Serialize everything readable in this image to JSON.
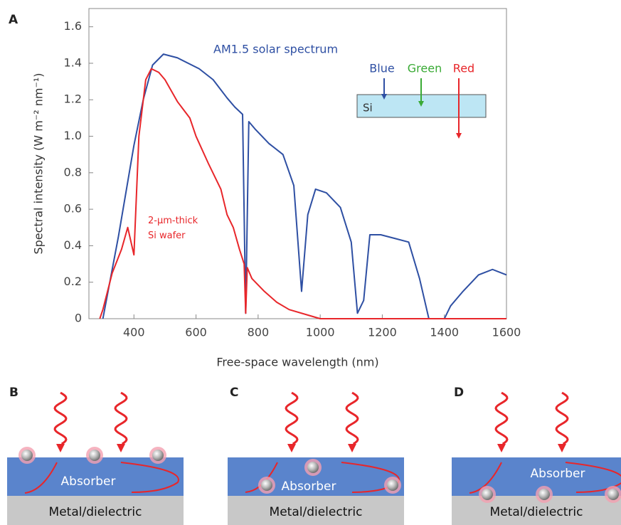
{
  "panel_label": "A",
  "chart_data": {
    "type": "line",
    "x_label": "Free-space wavelength (nm)",
    "y_label": "Spectral intensity (W m⁻² nm⁻¹)",
    "xlim": [
      255,
      1600
    ],
    "ylim": [
      0,
      1.7
    ],
    "xticks": [
      400,
      600,
      800,
      1000,
      1200,
      1400,
      1600
    ],
    "yticks": [
      0,
      0.2,
      0.4,
      0.6,
      0.8,
      {
        "value": 1,
        "label": "1.0"
      },
      1.2,
      1.4,
      1.6
    ],
    "series": [
      {
        "name": "AM1.5 solar spectrum",
        "color": "#2e4fa3",
        "x": [
          300,
          350,
          400,
          430,
          460,
          495,
          540,
          610,
          655,
          700,
          725,
          750,
          760,
          770,
          790,
          835,
          880,
          915,
          940,
          960,
          985,
          1020,
          1065,
          1100,
          1120,
          1140,
          1160,
          1195,
          1240,
          1285,
          1320,
          1350,
          1400,
          1420,
          1460,
          1510,
          1555,
          1600
        ],
        "values": [
          0,
          0.45,
          0.95,
          1.2,
          1.39,
          1.45,
          1.43,
          1.37,
          1.31,
          1.21,
          1.16,
          1.12,
          0.03,
          1.08,
          1.04,
          0.96,
          0.9,
          0.73,
          0.15,
          0.57,
          0.71,
          0.69,
          0.61,
          0.42,
          0.03,
          0.1,
          0.46,
          0.46,
          0.44,
          0.42,
          0.22,
          0,
          0,
          0.07,
          0.15,
          0.24,
          0.27,
          0.24
        ]
      },
      {
        "name": "2-µm-thick Si wafer",
        "color": "#e8262a",
        "x": [
          290,
          300,
          330,
          360,
          380,
          400,
          416,
          438,
          456,
          480,
          500,
          540,
          580,
          600,
          640,
          680,
          700,
          720,
          740,
          755,
          760,
          765,
          780,
          820,
          860,
          900,
          960,
          1000,
          1100,
          1600
        ],
        "values": [
          0,
          0.05,
          0.25,
          0.38,
          0.5,
          0.35,
          1.0,
          1.31,
          1.37,
          1.35,
          1.31,
          1.19,
          1.1,
          1.0,
          0.85,
          0.71,
          0.57,
          0.5,
          0.38,
          0.3,
          0.03,
          0.28,
          0.22,
          0.15,
          0.09,
          0.05,
          0.02,
          0,
          0,
          0
        ]
      }
    ]
  },
  "inset": {
    "labels": [
      "Blue",
      "Green",
      "Red"
    ],
    "material": "Si"
  },
  "panels": [
    {
      "label": "B",
      "absorber": "Absorber",
      "substrate": "Metal/dielectric"
    },
    {
      "label": "C",
      "absorber": "Absorber",
      "substrate": "Metal/dielectric"
    },
    {
      "label": "D",
      "absorber": "Absorber",
      "substrate": "Metal/dielectric"
    }
  ]
}
